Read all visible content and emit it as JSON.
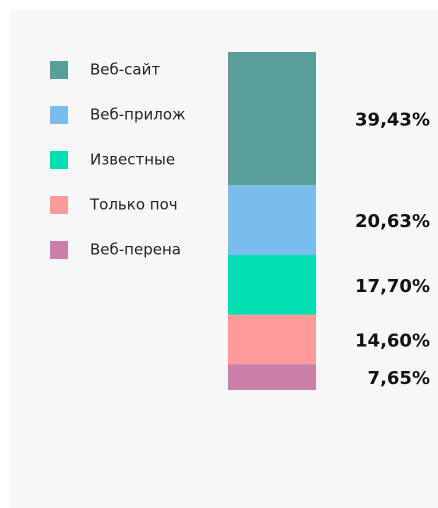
{
  "chart_data": {
    "type": "bar",
    "stacked": true,
    "series": [
      {
        "name": "Веб-сайт",
        "color": "#5a9e9a",
        "values": [
          39.43
        ],
        "value_labels": [
          "39,43%"
        ]
      },
      {
        "name": "Веб-прилож",
        "color": "#7bbcee",
        "values": [
          20.63
        ],
        "value_labels": [
          "20,63%"
        ]
      },
      {
        "name": "Известные",
        "color": "#00e0b0",
        "values": [
          17.7
        ],
        "value_labels": [
          "17,70%"
        ]
      },
      {
        "name": "Только поч",
        "color": "#ff9a9a",
        "values": [
          14.6
        ],
        "value_labels": [
          "14,60%"
        ]
      },
      {
        "name": "Веб-перена",
        "color": "#c97fa8",
        "values": [
          7.65
        ],
        "value_labels": [
          "7,65%"
        ]
      }
    ],
    "legend": "top-left"
  }
}
